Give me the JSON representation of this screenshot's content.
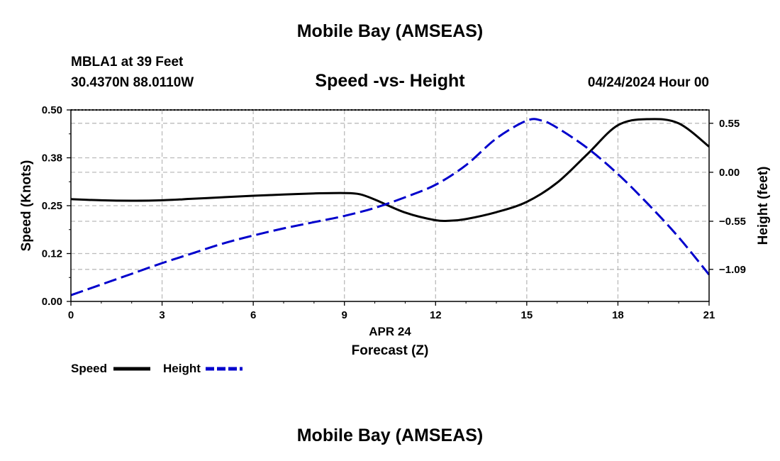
{
  "header": {
    "title": "Mobile Bay (AMSEAS)",
    "station": "MBLA1 at 39 Feet",
    "coords": "30.4370N  88.0110W",
    "chart_title": "Speed -vs- Height",
    "datetime": "04/24/2024 Hour 00"
  },
  "footer": {
    "title": "Mobile Bay (AMSEAS)"
  },
  "colors": {
    "speed": "#000000",
    "height": "#0000cc",
    "grid": "#bbbbbb"
  },
  "chart_data": {
    "type": "line",
    "title": "Speed -vs- Height",
    "xlabel": "Forecast (Z)",
    "xsublabel": "APR 24",
    "ylabel": "Speed (Knots)",
    "y2label": "Height (feet)",
    "xlim": [
      0,
      21
    ],
    "ylim": [
      0,
      0.5
    ],
    "y2lim": [
      -1.45,
      0.7
    ],
    "xticks": [
      0,
      3,
      6,
      9,
      12,
      15,
      18,
      21
    ],
    "yticks": [
      {
        "value": 0.0,
        "label": "0.00"
      },
      {
        "value": 0.125,
        "label": "0.12"
      },
      {
        "value": 0.25,
        "label": "0.25"
      },
      {
        "value": 0.375,
        "label": "0.38"
      },
      {
        "value": 0.5,
        "label": "0.50"
      }
    ],
    "y2ticks": [
      {
        "value": 0.55,
        "label": "0.55"
      },
      {
        "value": 0.0,
        "label": "0.00"
      },
      {
        "value": -0.55,
        "label": "−0.55"
      },
      {
        "value": -1.09,
        "label": "−1.09"
      }
    ],
    "grid": true,
    "legend": {
      "position": "bottom-left",
      "entries": [
        "Speed",
        "Height"
      ]
    },
    "series": [
      {
        "name": "Speed",
        "axis": "left",
        "style": "solid",
        "x": [
          0,
          1,
          2,
          3,
          4,
          5,
          6,
          7,
          8,
          9,
          9.5,
          10,
          11,
          12,
          12.5,
          13,
          14,
          15,
          16,
          17,
          18,
          19,
          20,
          21
        ],
        "values": [
          0.267,
          0.264,
          0.263,
          0.264,
          0.268,
          0.272,
          0.276,
          0.279,
          0.282,
          0.283,
          0.28,
          0.266,
          0.232,
          0.212,
          0.211,
          0.215,
          0.233,
          0.26,
          0.31,
          0.385,
          0.46,
          0.476,
          0.465,
          0.404
        ]
      },
      {
        "name": "Height",
        "axis": "right",
        "style": "dashed",
        "x": [
          0,
          1,
          2,
          3,
          4,
          5,
          6,
          7,
          8,
          9,
          10,
          11,
          12,
          13,
          14,
          15,
          15.5,
          16,
          17,
          18,
          19,
          20,
          21
        ],
        "values": [
          -1.38,
          -1.26,
          -1.14,
          -1.02,
          -0.91,
          -0.8,
          -0.71,
          -0.63,
          -0.56,
          -0.49,
          -0.4,
          -0.28,
          -0.14,
          0.08,
          0.38,
          0.58,
          0.58,
          0.5,
          0.27,
          -0.02,
          -0.36,
          -0.73,
          -1.15
        ]
      }
    ]
  }
}
